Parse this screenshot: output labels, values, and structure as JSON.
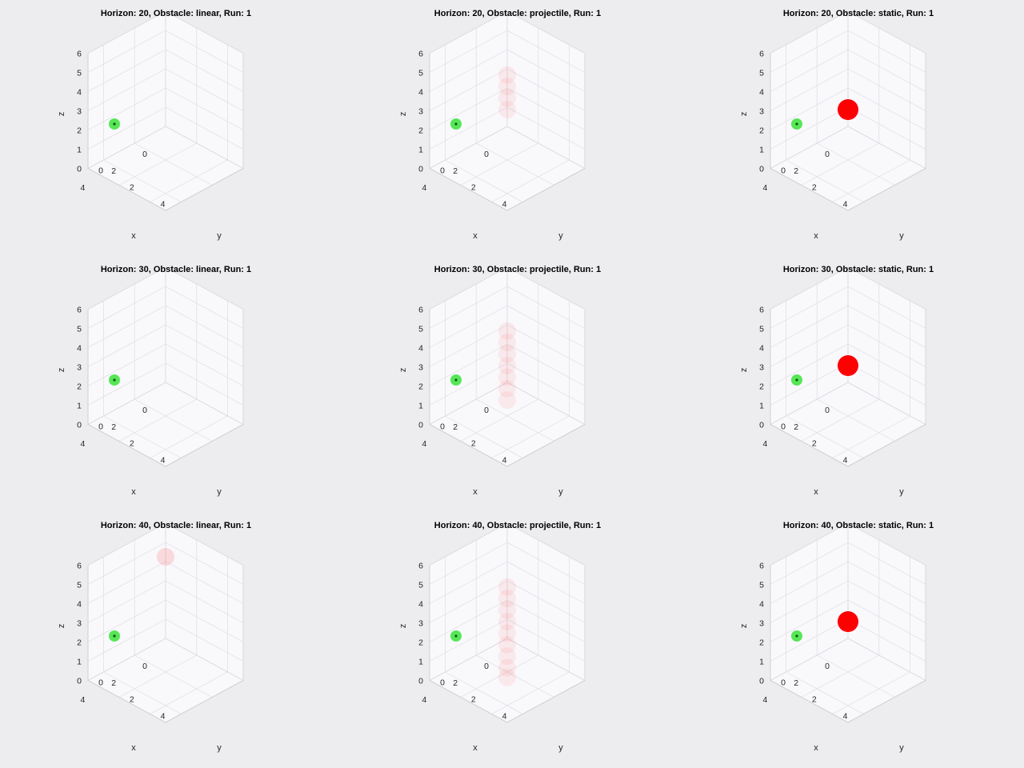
{
  "figure": {
    "background": "#edecee"
  },
  "axes_style": {
    "plot_bg": "#f9f8fb",
    "grid_color": "#dedde3",
    "axis_color": "#d2d1d6",
    "agent_color": "#1fe01f",
    "agent_center_color": "#0a5a0a",
    "obstacle_color": "#ff0000"
  },
  "chart_data": [
    {
      "type": "scatter3d",
      "title": "Horizon: 20, Obstacle: linear, Run: 1",
      "xlabel": "x",
      "ylabel": "y",
      "zlabel": "z",
      "xlim": [
        0,
        5
      ],
      "ylim": [
        0,
        5
      ],
      "zlim": [
        0,
        6
      ],
      "xticks": [
        "0",
        "2",
        "4"
      ],
      "yticks": [
        "0",
        "2",
        "4"
      ],
      "zticks": [
        "0",
        "1",
        "2",
        "3",
        "4",
        "5",
        "6"
      ],
      "grid": true,
      "series": [
        {
          "role": "agent",
          "points": [
            [
              1,
              1,
              1
            ]
          ]
        },
        {
          "role": "obstacle",
          "opacity": 0.06,
          "points": []
        }
      ]
    },
    {
      "type": "scatter3d",
      "title": "Horizon: 20, Obstacle: projectile, Run: 1",
      "xlabel": "x",
      "ylabel": "y",
      "zlabel": "z",
      "xlim": [
        0,
        5
      ],
      "ylim": [
        0,
        5
      ],
      "zlim": [
        0,
        6
      ],
      "xticks": [
        "0",
        "2",
        "4"
      ],
      "yticks": [
        "0",
        "2",
        "4"
      ],
      "zticks": [
        "0",
        "1",
        "2",
        "3",
        "4",
        "5",
        "6"
      ],
      "grid": true,
      "series": [
        {
          "role": "agent",
          "points": [
            [
              1,
              1,
              1
            ]
          ]
        },
        {
          "role": "obstacle",
          "opacity": 0.06,
          "points": [
            [
              3,
              3,
              5.3
            ],
            [
              3,
              3,
              4.7
            ],
            [
              3,
              3,
              4.1
            ],
            [
              3,
              3,
              3.5
            ]
          ]
        }
      ]
    },
    {
      "type": "scatter3d",
      "title": "Horizon: 20, Obstacle: static, Run: 1",
      "xlabel": "x",
      "ylabel": "y",
      "zlabel": "z",
      "xlim": [
        0,
        5
      ],
      "ylim": [
        0,
        5
      ],
      "zlim": [
        0,
        6
      ],
      "xticks": [
        "0",
        "2",
        "4"
      ],
      "yticks": [
        "0",
        "2",
        "4"
      ],
      "zticks": [
        "0",
        "1",
        "2",
        "3",
        "4",
        "5",
        "6"
      ],
      "grid": true,
      "series": [
        {
          "role": "agent",
          "points": [
            [
              1,
              1,
              1
            ]
          ]
        },
        {
          "role": "obstacle",
          "opacity": 1,
          "points": [
            [
              3,
              3,
              3.5
            ]
          ]
        }
      ]
    },
    {
      "type": "scatter3d",
      "title": "Horizon: 30, Obstacle: linear, Run: 1",
      "xlabel": "x",
      "ylabel": "y",
      "zlabel": "z",
      "xlim": [
        0,
        5
      ],
      "ylim": [
        0,
        5
      ],
      "zlim": [
        0,
        6
      ],
      "xticks": [
        "0",
        "2",
        "4"
      ],
      "yticks": [
        "0",
        "2",
        "4"
      ],
      "zticks": [
        "0",
        "1",
        "2",
        "3",
        "4",
        "5",
        "6"
      ],
      "grid": true,
      "series": [
        {
          "role": "agent",
          "points": [
            [
              1,
              1,
              1
            ]
          ]
        },
        {
          "role": "obstacle",
          "opacity": 0.06,
          "points": []
        }
      ]
    },
    {
      "type": "scatter3d",
      "title": "Horizon: 30, Obstacle: projectile, Run: 1",
      "xlabel": "x",
      "ylabel": "y",
      "zlabel": "z",
      "xlim": [
        0,
        5
      ],
      "ylim": [
        0,
        5
      ],
      "zlim": [
        0,
        6
      ],
      "xticks": [
        "0",
        "2",
        "4"
      ],
      "yticks": [
        "0",
        "2",
        "4"
      ],
      "zticks": [
        "0",
        "1",
        "2",
        "3",
        "4",
        "5",
        "6"
      ],
      "grid": true,
      "series": [
        {
          "role": "agent",
          "points": [
            [
              1,
              1,
              1
            ]
          ]
        },
        {
          "role": "obstacle",
          "opacity": 0.06,
          "points": [
            [
              3,
              3,
              5.3
            ],
            [
              3,
              3,
              4.7
            ],
            [
              3,
              3,
              4.1
            ],
            [
              3,
              3,
              3.5
            ],
            [
              3,
              3,
              2.9
            ],
            [
              3,
              3,
              2.3
            ],
            [
              3,
              3,
              1.7
            ]
          ]
        }
      ]
    },
    {
      "type": "scatter3d",
      "title": "Horizon: 30, Obstacle: static, Run: 1",
      "xlabel": "x",
      "ylabel": "y",
      "zlabel": "z",
      "xlim": [
        0,
        5
      ],
      "ylim": [
        0,
        5
      ],
      "zlim": [
        0,
        6
      ],
      "xticks": [
        "0",
        "2",
        "4"
      ],
      "yticks": [
        "0",
        "2",
        "4"
      ],
      "zticks": [
        "0",
        "1",
        "2",
        "3",
        "4",
        "5",
        "6"
      ],
      "grid": true,
      "series": [
        {
          "role": "agent",
          "points": [
            [
              1,
              1,
              1
            ]
          ]
        },
        {
          "role": "obstacle",
          "opacity": 1,
          "points": [
            [
              3,
              3,
              3.5
            ]
          ]
        }
      ]
    },
    {
      "type": "scatter3d",
      "title": "Horizon: 40, Obstacle: linear, Run: 1",
      "xlabel": "x",
      "ylabel": "y",
      "zlabel": "z",
      "xlim": [
        0,
        5
      ],
      "ylim": [
        0,
        5
      ],
      "zlim": [
        0,
        6
      ],
      "xticks": [
        "0",
        "2",
        "4"
      ],
      "yticks": [
        "0",
        "2",
        "4"
      ],
      "zticks": [
        "0",
        "1",
        "2",
        "3",
        "4",
        "5",
        "6"
      ],
      "grid": true,
      "series": [
        {
          "role": "agent",
          "points": [
            [
              1,
              1,
              1
            ]
          ]
        },
        {
          "role": "obstacle",
          "opacity": 0.12,
          "points": [
            [
              2,
              2,
              6
            ]
          ]
        }
      ]
    },
    {
      "type": "scatter3d",
      "title": "Horizon: 40, Obstacle: projectile, Run: 1",
      "xlabel": "x",
      "ylabel": "y",
      "zlabel": "z",
      "xlim": [
        0,
        5
      ],
      "ylim": [
        0,
        5
      ],
      "zlim": [
        0,
        6
      ],
      "xticks": [
        "0",
        "2",
        "4"
      ],
      "yticks": [
        "0",
        "2",
        "4"
      ],
      "zticks": [
        "0",
        "1",
        "2",
        "3",
        "4",
        "5",
        "6"
      ],
      "grid": true,
      "series": [
        {
          "role": "agent",
          "points": [
            [
              1,
              1,
              1
            ]
          ]
        },
        {
          "role": "obstacle",
          "opacity": 0.06,
          "points": [
            [
              3,
              3,
              5.3
            ],
            [
              3,
              3,
              4.7
            ],
            [
              3,
              3,
              4.1
            ],
            [
              3,
              3,
              3.5
            ],
            [
              3,
              3,
              2.9
            ],
            [
              3,
              3,
              2.3
            ],
            [
              3,
              3,
              1.7
            ],
            [
              3,
              3,
              1.1
            ],
            [
              3,
              3,
              0.6
            ]
          ]
        }
      ]
    },
    {
      "type": "scatter3d",
      "title": "Horizon: 40, Obstacle: static, Run: 1",
      "xlabel": "x",
      "ylabel": "y",
      "zlabel": "z",
      "xlim": [
        0,
        5
      ],
      "ylim": [
        0,
        5
      ],
      "zlim": [
        0,
        6
      ],
      "xticks": [
        "0",
        "2",
        "4"
      ],
      "yticks": [
        "0",
        "2",
        "4"
      ],
      "zticks": [
        "0",
        "1",
        "2",
        "3",
        "4",
        "5",
        "6"
      ],
      "grid": true,
      "series": [
        {
          "role": "agent",
          "points": [
            [
              1,
              1,
              1
            ]
          ]
        },
        {
          "role": "obstacle",
          "opacity": 1,
          "points": [
            [
              3,
              3,
              3.5
            ]
          ]
        }
      ]
    }
  ]
}
